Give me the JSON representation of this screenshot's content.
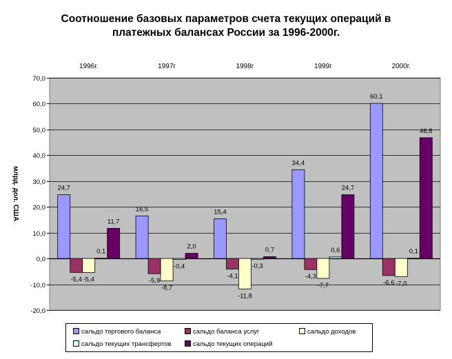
{
  "chart_data": {
    "type": "bar",
    "title_line1": "Соотношение базовых параметров счета текущих операций в",
    "title_line2": "платежных балансах России за 1996-2000г.",
    "ylabel": "млрд. дол. США",
    "categories": [
      "1996г.",
      "1997г",
      "1998г",
      "1999г",
      "2000г."
    ],
    "ylim": [
      -20,
      70
    ],
    "yticks": [
      "-20,0",
      "-10,0",
      "0,0",
      "10,0",
      "20,0",
      "30,0",
      "40,0",
      "50,0",
      "60,0",
      "70,0"
    ],
    "grid": true,
    "legend_position": "bottom",
    "series": [
      {
        "name": "сальдо торгового баланса",
        "color": "#9999ff",
        "values": [
          24.7,
          16.5,
          15.4,
          34.4,
          60.1
        ],
        "labels": [
          "24,7",
          "16,5",
          "15,4",
          "34,4",
          "60,1"
        ]
      },
      {
        "name": "сальдо баланса услуг",
        "color": "#993366",
        "values": [
          -5.4,
          -5.9,
          -4.1,
          -4.3,
          -6.6
        ],
        "labels": [
          "-5,4",
          "-5,9",
          "-4,1",
          "-4,3",
          "-6,6"
        ]
      },
      {
        "name": "сальдо доходов",
        "color": "#ffffcc",
        "values": [
          -5.4,
          -8.7,
          -11.8,
          -7.7,
          -7.0
        ],
        "labels": [
          "-5,4",
          "-8,7",
          "-11,8",
          "-7,7",
          "-7,0"
        ]
      },
      {
        "name": "сальдо текущих трансфертов",
        "color": "#ccffff",
        "values": [
          0.1,
          -0.4,
          -0.3,
          0.6,
          0.1
        ],
        "labels": [
          "0,1",
          "-0,4",
          "-0,3",
          "0,6",
          "0,1"
        ]
      },
      {
        "name": "сальдо текущих операций",
        "color": "#660066",
        "values": [
          11.7,
          2.0,
          0.7,
          24.7,
          46.8
        ],
        "labels": [
          "11,7",
          "2,0",
          "0,7",
          "24,7",
          "46,8"
        ]
      }
    ]
  }
}
